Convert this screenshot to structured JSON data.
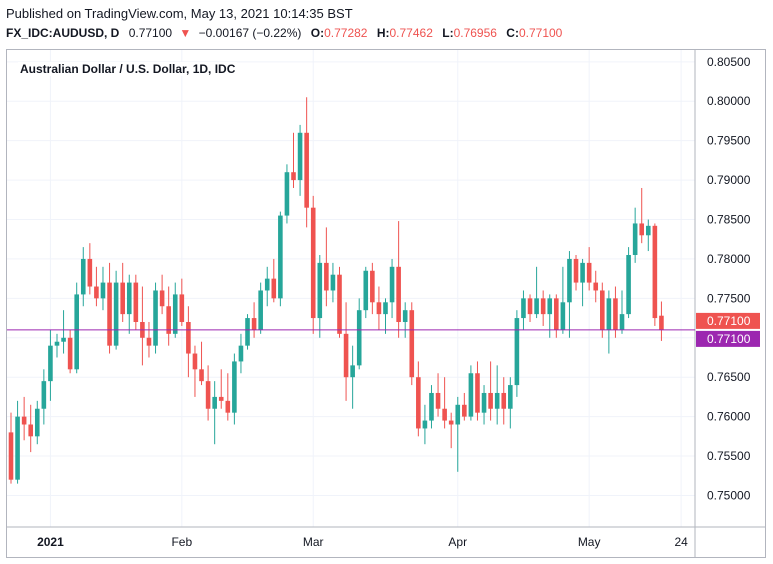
{
  "header": {
    "published": "Published on TradingView.com, May 13, 2021 10:14:35 BST",
    "symbol": "FX_IDC:AUDUSD, D",
    "last": "0.77100",
    "change_arrow": "triangle-down-icon",
    "change": "−0.00167 (−0.22%)",
    "open_label": "O:",
    "open": "0.77282",
    "high_label": "H:",
    "high": "0.77462",
    "low_label": "L:",
    "low": "0.76956",
    "close_label": "C:",
    "close": "0.77100"
  },
  "colors": {
    "up": "#26a69a",
    "down": "#ef5350",
    "current_price": "#ef5350",
    "line_marker": "#9c27b0",
    "grid": "#f0f3fa",
    "axis": "#b2b5be"
  },
  "chart_data": {
    "type": "candlestick",
    "title": "Australian Dollar / U.S. Dollar, 1D, IDC",
    "ylim": [
      0.746,
      0.8065
    ],
    "y_ticks": [
      "0.75000",
      "0.75500",
      "0.76000",
      "0.76500",
      "0.77000",
      "0.77500",
      "0.78000",
      "0.78500",
      "0.79000",
      "0.79500",
      "0.80000",
      "0.80500"
    ],
    "x_ticks": [
      {
        "label": "2021",
        "index": 6
      },
      {
        "label": "Feb",
        "index": 26
      },
      {
        "label": "Mar",
        "index": 46
      },
      {
        "label": "Apr",
        "index": 68
      },
      {
        "label": "May",
        "index": 88
      },
      {
        "label": "24",
        "index": 102
      }
    ],
    "grid": true,
    "price_labels": [
      {
        "value": 0.771,
        "text": "0.77100",
        "color": "#ef5350"
      },
      {
        "value": 0.771,
        "text": "0.77100",
        "color": "#9c27b0"
      }
    ],
    "horizontal_line": 0.771,
    "candles": [
      {
        "o": 0.758,
        "h": 0.7605,
        "l": 0.7515,
        "c": 0.752
      },
      {
        "o": 0.752,
        "h": 0.762,
        "l": 0.7515,
        "c": 0.76
      },
      {
        "o": 0.76,
        "h": 0.7625,
        "l": 0.757,
        "c": 0.759
      },
      {
        "o": 0.759,
        "h": 0.7615,
        "l": 0.7555,
        "c": 0.7575
      },
      {
        "o": 0.7575,
        "h": 0.762,
        "l": 0.7565,
        "c": 0.761
      },
      {
        "o": 0.761,
        "h": 0.766,
        "l": 0.759,
        "c": 0.7645
      },
      {
        "o": 0.7645,
        "h": 0.771,
        "l": 0.762,
        "c": 0.769
      },
      {
        "o": 0.769,
        "h": 0.7705,
        "l": 0.7675,
        "c": 0.7695
      },
      {
        "o": 0.7695,
        "h": 0.7735,
        "l": 0.768,
        "c": 0.77
      },
      {
        "o": 0.77,
        "h": 0.771,
        "l": 0.7655,
        "c": 0.766
      },
      {
        "o": 0.766,
        "h": 0.777,
        "l": 0.7655,
        "c": 0.7755
      },
      {
        "o": 0.7755,
        "h": 0.7815,
        "l": 0.774,
        "c": 0.78
      },
      {
        "o": 0.78,
        "h": 0.782,
        "l": 0.7755,
        "c": 0.7765
      },
      {
        "o": 0.7765,
        "h": 0.779,
        "l": 0.774,
        "c": 0.775
      },
      {
        "o": 0.775,
        "h": 0.779,
        "l": 0.7735,
        "c": 0.777
      },
      {
        "o": 0.777,
        "h": 0.7795,
        "l": 0.768,
        "c": 0.769
      },
      {
        "o": 0.769,
        "h": 0.7785,
        "l": 0.7685,
        "c": 0.777
      },
      {
        "o": 0.777,
        "h": 0.7795,
        "l": 0.772,
        "c": 0.773
      },
      {
        "o": 0.773,
        "h": 0.778,
        "l": 0.7705,
        "c": 0.777
      },
      {
        "o": 0.777,
        "h": 0.778,
        "l": 0.771,
        "c": 0.772
      },
      {
        "o": 0.772,
        "h": 0.7765,
        "l": 0.7665,
        "c": 0.77
      },
      {
        "o": 0.77,
        "h": 0.772,
        "l": 0.7675,
        "c": 0.769
      },
      {
        "o": 0.769,
        "h": 0.777,
        "l": 0.768,
        "c": 0.776
      },
      {
        "o": 0.776,
        "h": 0.778,
        "l": 0.773,
        "c": 0.774
      },
      {
        "o": 0.774,
        "h": 0.7765,
        "l": 0.769,
        "c": 0.7705
      },
      {
        "o": 0.7705,
        "h": 0.777,
        "l": 0.77,
        "c": 0.7755
      },
      {
        "o": 0.7755,
        "h": 0.7775,
        "l": 0.7715,
        "c": 0.772
      },
      {
        "o": 0.772,
        "h": 0.774,
        "l": 0.765,
        "c": 0.768
      },
      {
        "o": 0.768,
        "h": 0.769,
        "l": 0.7625,
        "c": 0.766
      },
      {
        "o": 0.766,
        "h": 0.7695,
        "l": 0.764,
        "c": 0.7645
      },
      {
        "o": 0.7645,
        "h": 0.7665,
        "l": 0.7595,
        "c": 0.761
      },
      {
        "o": 0.761,
        "h": 0.7645,
        "l": 0.7565,
        "c": 0.7625
      },
      {
        "o": 0.7625,
        "h": 0.766,
        "l": 0.761,
        "c": 0.762
      },
      {
        "o": 0.762,
        "h": 0.7655,
        "l": 0.7595,
        "c": 0.7605
      },
      {
        "o": 0.7605,
        "h": 0.768,
        "l": 0.759,
        "c": 0.767
      },
      {
        "o": 0.767,
        "h": 0.7705,
        "l": 0.7655,
        "c": 0.769
      },
      {
        "o": 0.769,
        "h": 0.773,
        "l": 0.7685,
        "c": 0.7725
      },
      {
        "o": 0.7725,
        "h": 0.7745,
        "l": 0.77,
        "c": 0.771
      },
      {
        "o": 0.771,
        "h": 0.777,
        "l": 0.7705,
        "c": 0.776
      },
      {
        "o": 0.776,
        "h": 0.779,
        "l": 0.774,
        "c": 0.7775
      },
      {
        "o": 0.7775,
        "h": 0.78,
        "l": 0.7745,
        "c": 0.775
      },
      {
        "o": 0.775,
        "h": 0.786,
        "l": 0.774,
        "c": 0.7855
      },
      {
        "o": 0.7855,
        "h": 0.792,
        "l": 0.7845,
        "c": 0.791
      },
      {
        "o": 0.791,
        "h": 0.796,
        "l": 0.789,
        "c": 0.79
      },
      {
        "o": 0.79,
        "h": 0.797,
        "l": 0.788,
        "c": 0.796
      },
      {
        "o": 0.796,
        "h": 0.8005,
        "l": 0.784,
        "c": 0.7865
      },
      {
        "o": 0.7865,
        "h": 0.788,
        "l": 0.7705,
        "c": 0.7725
      },
      {
        "o": 0.7725,
        "h": 0.7805,
        "l": 0.77,
        "c": 0.7795
      },
      {
        "o": 0.7795,
        "h": 0.784,
        "l": 0.774,
        "c": 0.776
      },
      {
        "o": 0.776,
        "h": 0.7795,
        "l": 0.7745,
        "c": 0.778
      },
      {
        "o": 0.778,
        "h": 0.779,
        "l": 0.77,
        "c": 0.7705
      },
      {
        "o": 0.7705,
        "h": 0.7745,
        "l": 0.762,
        "c": 0.765
      },
      {
        "o": 0.765,
        "h": 0.769,
        "l": 0.761,
        "c": 0.7665
      },
      {
        "o": 0.7665,
        "h": 0.775,
        "l": 0.766,
        "c": 0.7735
      },
      {
        "o": 0.7735,
        "h": 0.779,
        "l": 0.7725,
        "c": 0.7785
      },
      {
        "o": 0.7785,
        "h": 0.7795,
        "l": 0.773,
        "c": 0.7745
      },
      {
        "o": 0.7745,
        "h": 0.7765,
        "l": 0.771,
        "c": 0.773
      },
      {
        "o": 0.773,
        "h": 0.775,
        "l": 0.7705,
        "c": 0.7745
      },
      {
        "o": 0.7745,
        "h": 0.78,
        "l": 0.7725,
        "c": 0.779
      },
      {
        "o": 0.779,
        "h": 0.7848,
        "l": 0.77,
        "c": 0.772
      },
      {
        "o": 0.772,
        "h": 0.7745,
        "l": 0.77,
        "c": 0.7735
      },
      {
        "o": 0.7735,
        "h": 0.7745,
        "l": 0.764,
        "c": 0.765
      },
      {
        "o": 0.765,
        "h": 0.767,
        "l": 0.7575,
        "c": 0.7585
      },
      {
        "o": 0.7585,
        "h": 0.7615,
        "l": 0.7565,
        "c": 0.7595
      },
      {
        "o": 0.7595,
        "h": 0.764,
        "l": 0.7585,
        "c": 0.763
      },
      {
        "o": 0.763,
        "h": 0.7655,
        "l": 0.76,
        "c": 0.761
      },
      {
        "o": 0.761,
        "h": 0.765,
        "l": 0.7585,
        "c": 0.7595
      },
      {
        "o": 0.7595,
        "h": 0.7605,
        "l": 0.756,
        "c": 0.759
      },
      {
        "o": 0.759,
        "h": 0.7625,
        "l": 0.753,
        "c": 0.7615
      },
      {
        "o": 0.7615,
        "h": 0.763,
        "l": 0.7595,
        "c": 0.76
      },
      {
        "o": 0.76,
        "h": 0.7665,
        "l": 0.7595,
        "c": 0.7655
      },
      {
        "o": 0.7655,
        "h": 0.767,
        "l": 0.7595,
        "c": 0.7605
      },
      {
        "o": 0.7605,
        "h": 0.764,
        "l": 0.759,
        "c": 0.763
      },
      {
        "o": 0.763,
        "h": 0.767,
        "l": 0.7595,
        "c": 0.761
      },
      {
        "o": 0.761,
        "h": 0.7665,
        "l": 0.759,
        "c": 0.763
      },
      {
        "o": 0.763,
        "h": 0.765,
        "l": 0.759,
        "c": 0.761
      },
      {
        "o": 0.761,
        "h": 0.765,
        "l": 0.7585,
        "c": 0.764
      },
      {
        "o": 0.764,
        "h": 0.7735,
        "l": 0.7625,
        "c": 0.7725
      },
      {
        "o": 0.7725,
        "h": 0.776,
        "l": 0.771,
        "c": 0.775
      },
      {
        "o": 0.775,
        "h": 0.7755,
        "l": 0.772,
        "c": 0.773
      },
      {
        "o": 0.773,
        "h": 0.779,
        "l": 0.7725,
        "c": 0.775
      },
      {
        "o": 0.775,
        "h": 0.776,
        "l": 0.7715,
        "c": 0.773
      },
      {
        "o": 0.773,
        "h": 0.7755,
        "l": 0.77,
        "c": 0.775
      },
      {
        "o": 0.775,
        "h": 0.7755,
        "l": 0.77,
        "c": 0.771
      },
      {
        "o": 0.771,
        "h": 0.779,
        "l": 0.7705,
        "c": 0.7745
      },
      {
        "o": 0.7745,
        "h": 0.781,
        "l": 0.77,
        "c": 0.78
      },
      {
        "o": 0.78,
        "h": 0.7805,
        "l": 0.776,
        "c": 0.777
      },
      {
        "o": 0.777,
        "h": 0.78,
        "l": 0.774,
        "c": 0.7795
      },
      {
        "o": 0.7795,
        "h": 0.7815,
        "l": 0.776,
        "c": 0.777
      },
      {
        "o": 0.777,
        "h": 0.7785,
        "l": 0.7745,
        "c": 0.776
      },
      {
        "o": 0.776,
        "h": 0.777,
        "l": 0.77,
        "c": 0.771
      },
      {
        "o": 0.771,
        "h": 0.776,
        "l": 0.768,
        "c": 0.775
      },
      {
        "o": 0.775,
        "h": 0.7765,
        "l": 0.77,
        "c": 0.771
      },
      {
        "o": 0.771,
        "h": 0.776,
        "l": 0.7705,
        "c": 0.773
      },
      {
        "o": 0.773,
        "h": 0.7815,
        "l": 0.7725,
        "c": 0.7805
      },
      {
        "o": 0.7805,
        "h": 0.7865,
        "l": 0.7795,
        "c": 0.7845
      },
      {
        "o": 0.7845,
        "h": 0.789,
        "l": 0.782,
        "c": 0.783
      },
      {
        "o": 0.783,
        "h": 0.785,
        "l": 0.781,
        "c": 0.7842
      },
      {
        "o": 0.7842,
        "h": 0.7845,
        "l": 0.7715,
        "c": 0.7725
      },
      {
        "o": 0.7728,
        "h": 0.7746,
        "l": 0.7696,
        "c": 0.771
      }
    ]
  }
}
